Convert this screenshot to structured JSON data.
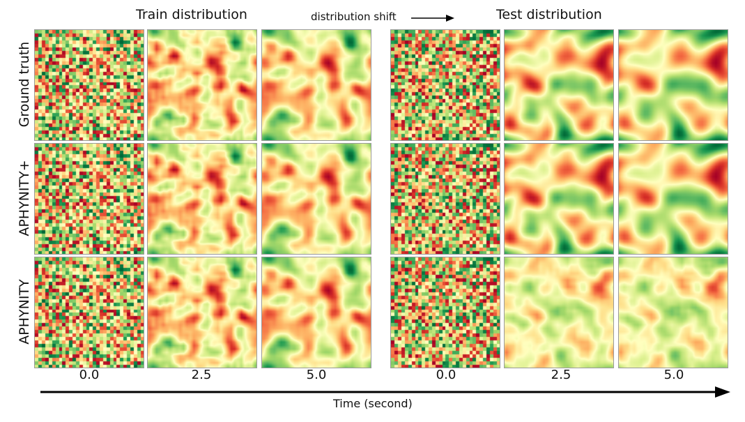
{
  "titles": {
    "train": "Train distribution",
    "test": "Test distribution",
    "shift": "distribution shift"
  },
  "rows": [
    {
      "label": "Ground  truth"
    },
    {
      "label": "APHYNITY+"
    },
    {
      "label": "APHYNITY"
    }
  ],
  "time_ticks": [
    "0.0",
    "2.5",
    "5.0",
    "0.0",
    "2.5",
    "5.0"
  ],
  "xlabel": "Time (second)",
  "colormap": [
    "#a50026",
    "#d73027",
    "#f46d43",
    "#fdae61",
    "#fee08b",
    "#ffffbf",
    "#d9ef8b",
    "#a6d96a",
    "#66bd63",
    "#1a9850",
    "#006837"
  ]
}
